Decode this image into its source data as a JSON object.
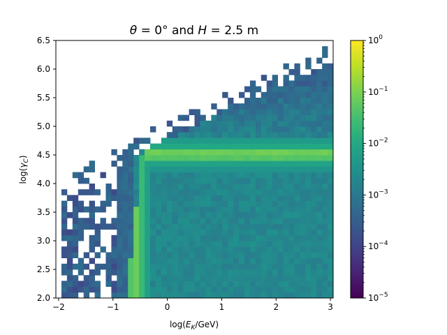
{
  "chart_data": {
    "type": "heatmap",
    "title": "θ = 0° and H = 2.5 m",
    "xlabel": "log(E_K/GeV)",
    "ylabel": "log(γ_C)",
    "xlim": [
      -2.05,
      3.05
    ],
    "ylim": [
      2.0,
      6.5
    ],
    "x_ticks": [
      -2,
      -1,
      0,
      1,
      2,
      3
    ],
    "x_tick_labels": [
      "−2",
      "−1",
      "0",
      "1",
      "2",
      "3"
    ],
    "y_ticks": [
      2.0,
      2.5,
      3.0,
      3.5,
      4.0,
      4.5,
      5.0,
      5.5,
      6.0,
      6.5
    ],
    "y_tick_labels": [
      "2.0",
      "2.5",
      "3.0",
      "3.5",
      "4.0",
      "4.5",
      "5.0",
      "5.5",
      "6.0",
      "6.5"
    ],
    "colorbar": {
      "scale": "log",
      "range": [
        1e-05,
        1
      ],
      "colormap": "viridis",
      "ticks": [
        1e-05,
        0.0001,
        0.001,
        0.01,
        0.1,
        1
      ],
      "tick_labels": [
        {
          "base": "10",
          "exp": "−5"
        },
        {
          "base": "10",
          "exp": "−4"
        },
        {
          "base": "10",
          "exp": "−3"
        },
        {
          "base": "10",
          "exp": "−2"
        },
        {
          "base": "10",
          "exp": "−1"
        },
        {
          "base": "10",
          "exp": "0"
        }
      ]
    },
    "grid": false,
    "bins": {
      "nx": 50,
      "ny": 45
    },
    "features": {
      "ridge_gamma_log": 4.52,
      "ridge_low_energy_log": -0.6,
      "core_value": 0.002,
      "ridge_value": 0.12
    }
  }
}
